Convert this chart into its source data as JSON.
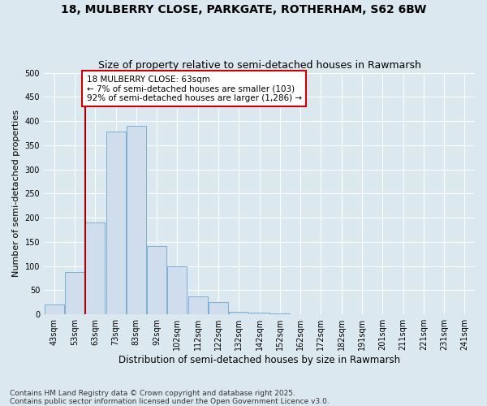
{
  "title1": "18, MULBERRY CLOSE, PARKGATE, ROTHERHAM, S62 6BW",
  "title2": "Size of property relative to semi-detached houses in Rawmarsh",
  "xlabel": "Distribution of semi-detached houses by size in Rawmarsh",
  "ylabel": "Number of semi-detached properties",
  "categories": [
    "43sqm",
    "53sqm",
    "63sqm",
    "73sqm",
    "83sqm",
    "92sqm",
    "102sqm",
    "112sqm",
    "122sqm",
    "132sqm",
    "142sqm",
    "152sqm",
    "162sqm",
    "172sqm",
    "182sqm",
    "191sqm",
    "201sqm",
    "211sqm",
    "221sqm",
    "231sqm",
    "241sqm"
  ],
  "values": [
    20,
    88,
    190,
    378,
    390,
    142,
    100,
    38,
    25,
    5,
    3,
    2,
    1,
    1,
    1,
    0,
    0,
    0,
    0,
    0,
    1
  ],
  "bar_color": "#cfdded",
  "bar_edge_color": "#7aafd4",
  "highlight_index": 2,
  "highlight_line_color": "#aa0000",
  "annotation_text": "18 MULBERRY CLOSE: 63sqm\n← 7% of semi-detached houses are smaller (103)\n92% of semi-detached houses are larger (1,286) →",
  "annotation_box_color": "#ffffff",
  "annotation_box_edge": "#cc0000",
  "ylim": [
    0,
    500
  ],
  "yticks": [
    0,
    50,
    100,
    150,
    200,
    250,
    300,
    350,
    400,
    450,
    500
  ],
  "plot_bg": "#dce8f0",
  "fig_bg": "#dce8f0",
  "grid_color": "#ffffff",
  "footnote": "Contains HM Land Registry data © Crown copyright and database right 2025.\nContains public sector information licensed under the Open Government Licence v3.0.",
  "title1_fontsize": 10,
  "title2_fontsize": 9,
  "xlabel_fontsize": 8.5,
  "ylabel_fontsize": 8,
  "tick_fontsize": 7,
  "annotation_fontsize": 7.5,
  "footnote_fontsize": 6.5
}
